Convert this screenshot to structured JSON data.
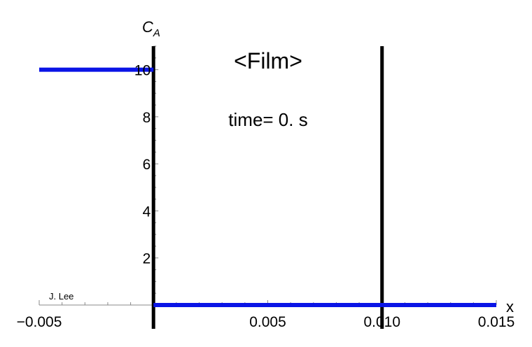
{
  "chart_data": {
    "type": "line",
    "title": "<Film>",
    "annotation": "time= 0. s",
    "credit": "J. Lee",
    "xlabel": "x",
    "ylabel_main": "C",
    "ylabel_sub": "A",
    "xlim": [
      -0.005,
      0.015
    ],
    "ylim": [
      0,
      11
    ],
    "x_ticks": [
      {
        "value": -0.005,
        "label": "−0.005"
      },
      {
        "value": 0.005,
        "label": "0.005"
      },
      {
        "value": 0.01,
        "label": "0.010"
      },
      {
        "value": 0.015,
        "label": "0.015"
      }
    ],
    "y_ticks": [
      {
        "value": 2,
        "label": "2"
      },
      {
        "value": 4,
        "label": "4"
      },
      {
        "value": 6,
        "label": "6"
      },
      {
        "value": 8,
        "label": "8"
      },
      {
        "value": 10,
        "label": "10"
      }
    ],
    "series": [
      {
        "color": "#0a14e6",
        "segments": [
          [
            [
              -0.005,
              10
            ],
            [
              0,
              10
            ]
          ],
          [
            [
              0,
              0
            ],
            [
              0.015,
              0
            ]
          ]
        ]
      }
    ],
    "boundaries": [
      {
        "x": 0,
        "color": "#000000"
      },
      {
        "x": 0.01,
        "color": "#000000"
      }
    ],
    "grid": false
  }
}
